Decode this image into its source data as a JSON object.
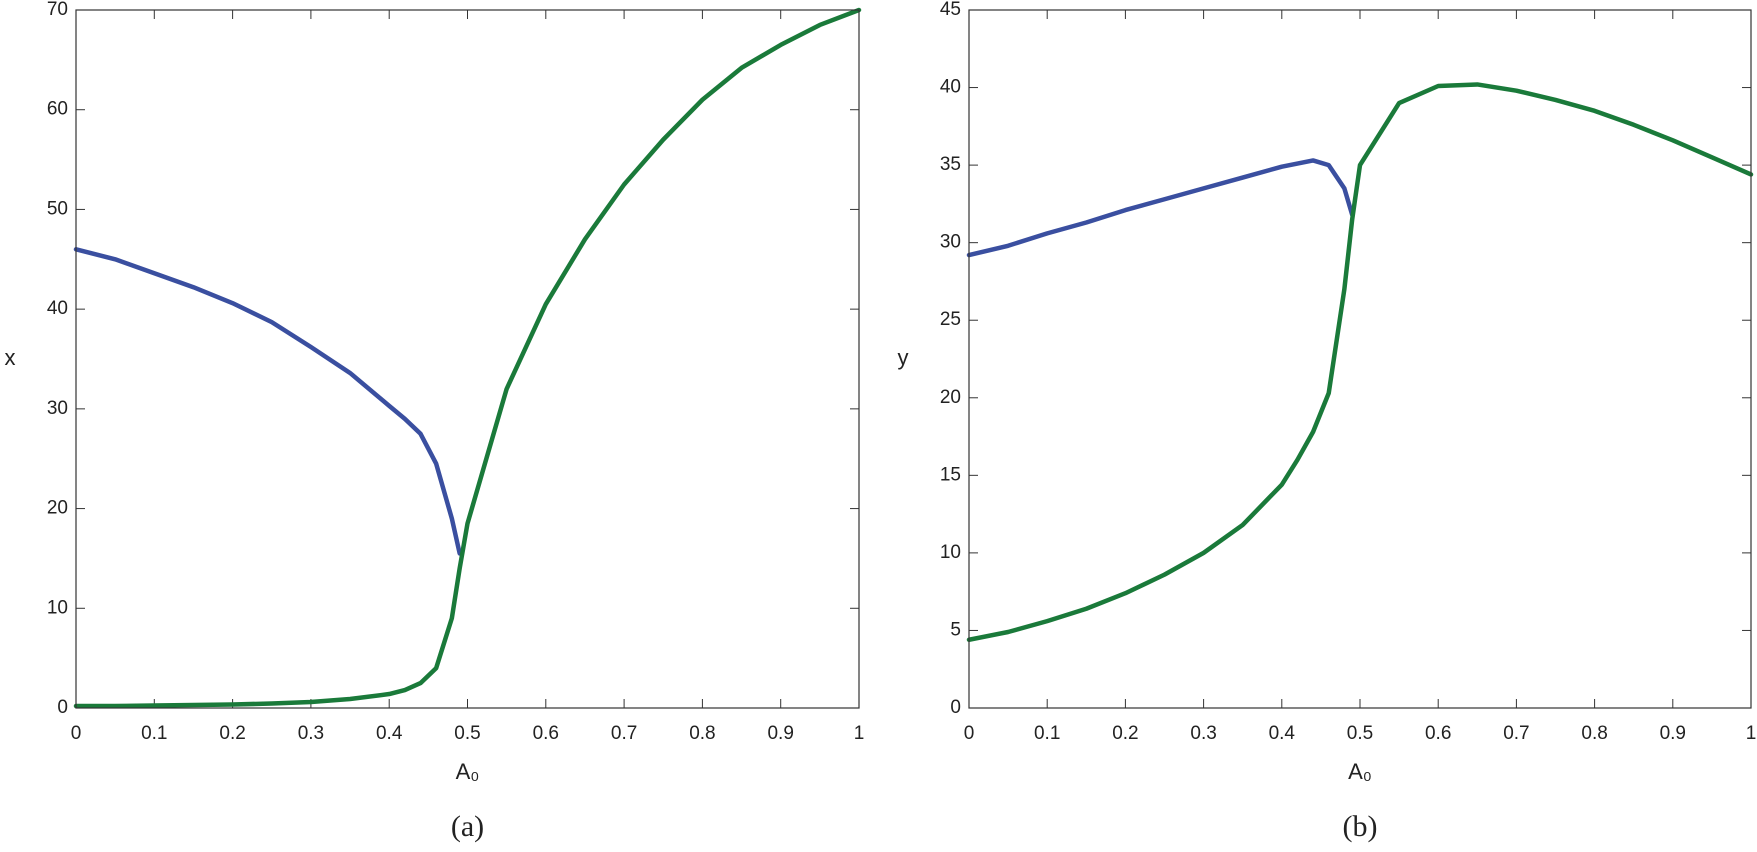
{
  "chart_data": [
    {
      "type": "line",
      "caption": "(a)",
      "xlabel": "A₀",
      "ylabel": "x",
      "xlim": [
        0,
        1
      ],
      "ylim": [
        0,
        70
      ],
      "xticks": [
        0,
        0.1,
        0.2,
        0.3,
        0.4,
        0.5,
        0.6,
        0.7,
        0.8,
        0.9,
        1
      ],
      "yticks": [
        0,
        10,
        20,
        30,
        40,
        50,
        60,
        70
      ],
      "x": [
        0,
        0.05,
        0.1,
        0.15,
        0.2,
        0.25,
        0.3,
        0.35,
        0.4,
        0.42,
        0.44,
        0.46,
        0.48,
        0.49,
        0.5,
        0.55,
        0.6,
        0.65,
        0.7,
        0.75,
        0.8,
        0.85,
        0.9,
        0.95,
        1
      ],
      "series": [
        {
          "color": "#3a4fa0",
          "values": [
            46,
            45,
            43.6,
            42.2,
            40.6,
            38.7,
            36.2,
            33.6,
            30.3,
            29,
            27.5,
            24.5,
            19,
            15.5,
            null,
            null,
            null,
            null,
            null,
            null,
            null,
            null,
            null,
            null,
            null
          ]
        },
        {
          "color": "#1a7a3a",
          "values": [
            0.2,
            0.2,
            0.25,
            0.3,
            0.35,
            0.45,
            0.6,
            0.9,
            1.4,
            1.8,
            2.5,
            4,
            9,
            14,
            18.5,
            32,
            40.5,
            47,
            52.5,
            57,
            61,
            64.2,
            66.5,
            68.5,
            70
          ]
        }
      ]
    },
    {
      "type": "line",
      "caption": "(b)",
      "xlabel": "A₀",
      "ylabel": "y",
      "xlim": [
        0,
        1
      ],
      "ylim": [
        0,
        45
      ],
      "xticks": [
        0,
        0.1,
        0.2,
        0.3,
        0.4,
        0.5,
        0.6,
        0.7,
        0.8,
        0.9,
        1
      ],
      "yticks": [
        0,
        5,
        10,
        15,
        20,
        25,
        30,
        35,
        40,
        45
      ],
      "x": [
        0,
        0.05,
        0.1,
        0.15,
        0.2,
        0.25,
        0.3,
        0.35,
        0.4,
        0.42,
        0.44,
        0.46,
        0.48,
        0.49,
        0.5,
        0.55,
        0.6,
        0.65,
        0.7,
        0.75,
        0.8,
        0.85,
        0.9,
        0.95,
        1
      ],
      "series": [
        {
          "color": "#3a4fa0",
          "values": [
            29.2,
            29.8,
            30.6,
            31.3,
            32.1,
            32.8,
            33.5,
            34.2,
            34.9,
            35.1,
            35.3,
            35,
            33.5,
            31.8,
            null,
            null,
            null,
            null,
            null,
            null,
            null,
            null,
            null,
            null,
            null
          ]
        },
        {
          "color": "#1a7a3a",
          "values": [
            4.4,
            4.9,
            5.6,
            6.4,
            7.4,
            8.6,
            10,
            11.8,
            14.4,
            16,
            17.8,
            20.3,
            27,
            31.5,
            35,
            39,
            40.1,
            40.2,
            39.8,
            39.2,
            38.5,
            37.6,
            36.6,
            35.5,
            34.4
          ]
        }
      ]
    }
  ]
}
